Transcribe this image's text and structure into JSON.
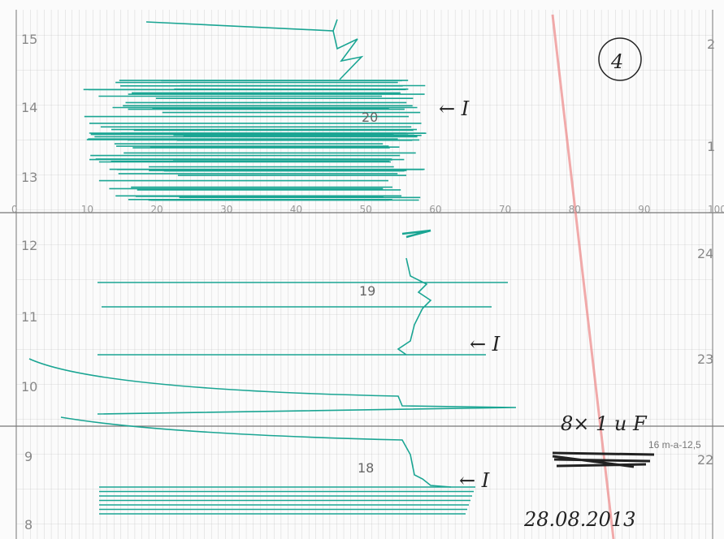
{
  "left_scale": [
    "15",
    "14",
    "13",
    "12",
    "11",
    "10",
    "9",
    "8"
  ],
  "right_scale": [
    "2",
    "1",
    "24",
    "23",
    "22"
  ],
  "middle_scale": [
    "0",
    "10",
    "20",
    "30",
    "40",
    "50",
    "60",
    "70",
    "80",
    "90",
    "100"
  ],
  "trace_labels": [
    "20",
    "19",
    "18"
  ],
  "annotations": {
    "sheet_number": "4",
    "marks": [
      "← I",
      "← I",
      "← I"
    ],
    "setting": "8× 1 u F",
    "printed_code": "16 m-a-12,5",
    "date": "28.08.2013"
  }
}
